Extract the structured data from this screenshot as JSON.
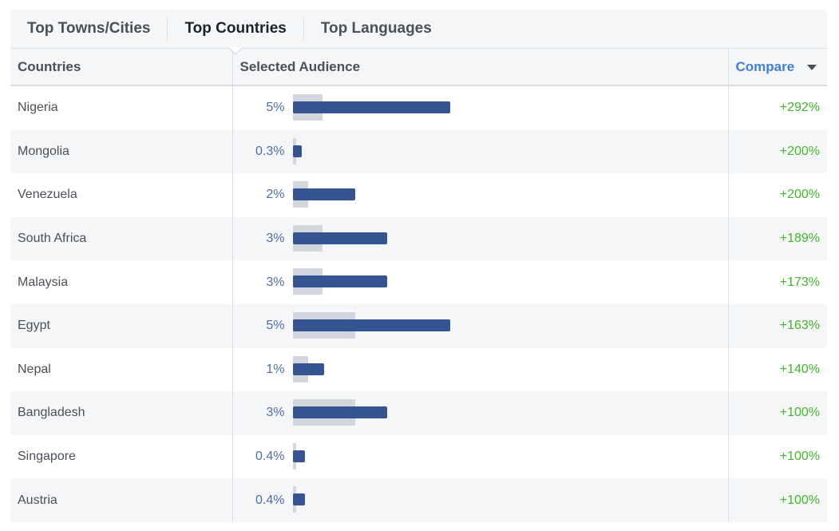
{
  "tabs": [
    {
      "label": "Top Towns/Cities",
      "active": false
    },
    {
      "label": "Top Countries",
      "active": true
    },
    {
      "label": "Top Languages",
      "active": false
    }
  ],
  "table": {
    "headers": {
      "country": "Countries",
      "audience": "Selected Audience",
      "compare": "Compare"
    },
    "rows": [
      {
        "country": "Nigeria",
        "pct": "5%",
        "value": 5,
        "baseline": 0.95,
        "compare": "+292%"
      },
      {
        "country": "Mongolia",
        "pct": "0.3%",
        "value": 0.3,
        "baseline": 0.1,
        "compare": "+200%"
      },
      {
        "country": "Venezuela",
        "pct": "2%",
        "value": 2,
        "baseline": 0.5,
        "compare": "+200%"
      },
      {
        "country": "South Africa",
        "pct": "3%",
        "value": 3,
        "baseline": 0.95,
        "compare": "+189%"
      },
      {
        "country": "Malaysia",
        "pct": "3%",
        "value": 3,
        "baseline": 0.95,
        "compare": "+173%"
      },
      {
        "country": "Egypt",
        "pct": "5%",
        "value": 5,
        "baseline": 2,
        "compare": "+163%"
      },
      {
        "country": "Nepal",
        "pct": "1%",
        "value": 1,
        "baseline": 0.5,
        "compare": "+140%"
      },
      {
        "country": "Bangladesh",
        "pct": "3%",
        "value": 3,
        "baseline": 2,
        "compare": "+100%"
      },
      {
        "country": "Singapore",
        "pct": "0.4%",
        "value": 0.4,
        "baseline": 0.1,
        "compare": "+100%"
      },
      {
        "country": "Austria",
        "pct": "0.4%",
        "value": 0.4,
        "baseline": 0.1,
        "compare": "+100%"
      }
    ]
  },
  "colors": {
    "bar": "#365491",
    "baseline_bar": "#d3d6dc",
    "positive": "#42b72a",
    "link": "#4080d4"
  },
  "scale_max": 5
}
